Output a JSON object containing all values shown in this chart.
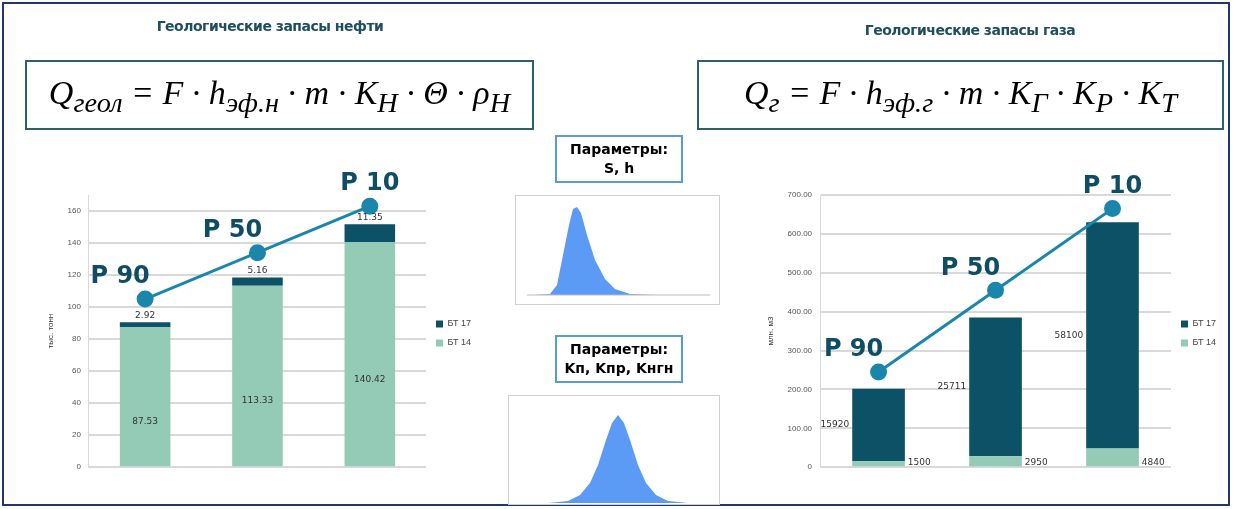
{
  "chart_data": [
    {
      "type": "bar",
      "title": "Геологические запасы нефти",
      "subtitle": "Q$_{геол}$ = F · h$_{эф.н}$ · m · K$_{Н}$ · Θ · ρ$_{Н}$",
      "ylabel": "тыс. тонн",
      "categories": [
        null,
        null,
        null
      ],
      "stacked": true,
      "ylim": [
        0,
        170
      ],
      "yticks": [
        0,
        20,
        40,
        60,
        80,
        100,
        120,
        140,
        160
      ],
      "grid": "y",
      "legend": "right",
      "marker": "circle",
      "tick_labels": "y",
      "series": [
        {
          "name": "БТ 14",
          "color": "#93cbb6",
          "values": [
            87.53,
            113.33,
            140.42
          ],
          "value_labels": [
            "87.53",
            "113.33",
            "140.42"
          ]
        },
        {
          "name": "БТ 17",
          "color": "#0d5166",
          "values": [
            2.92,
            5.16,
            11.35
          ],
          "value_labels": [
            "2.92",
            "5.16",
            "11.35"
          ]
        },
        {
          "type": "line",
          "color": "#1a86ab",
          "values": [
            105,
            134,
            163
          ],
          "value_labels": [
            "P 90",
            "P 50",
            "P 10"
          ]
        }
      ]
    },
    {
      "type": "other",
      "annotations": [
        "Параметры:\nS, h",
        "Параметры:\nKп, Kпр, Kнгн"
      ]
    },
    {
      "type": "bar",
      "title": "Геологические запасы газа",
      "subtitle": "Q$_{г}$ = F · h$_{эф.г}$ · m · K$_{Г}$ · K$_{Р}$ · K$_{Т}$",
      "ylabel": "млн. м3",
      "categories": [
        null,
        null,
        null
      ],
      "stacked": true,
      "ylim": [
        0,
        700
      ],
      "yticks": [
        0,
        {
          "value": 100,
          "label": "100.00"
        },
        {
          "value": 200,
          "label": "200.00"
        },
        {
          "value": 300,
          "label": "300.00"
        },
        {
          "value": 400,
          "label": "400.00"
        },
        {
          "value": 500,
          "label": "500.00"
        },
        {
          "value": 600,
          "label": "600.00"
        },
        {
          "value": 700,
          "label": "700.00"
        }
      ],
      "grid": "y",
      "legend": "right",
      "marker": "circle",
      "tick_labels": "y",
      "annotations": [
        "15920",
        "1500",
        "25711",
        "2950",
        "58100",
        "4840"
      ],
      "series": [
        {
          "name": "БТ 14",
          "color": "#93cbb6",
          "values": [
            15,
            28,
            48
          ]
        },
        {
          "name": "БТ 17",
          "color": "#0d5166",
          "values": [
            187,
            357,
            582
          ]
        },
        {
          "type": "line",
          "color": "#1a86ab",
          "values": [
            245,
            455,
            665
          ],
          "value_labels": [
            "P 90",
            "P 50",
            "P 10"
          ]
        }
      ]
    }
  ]
}
